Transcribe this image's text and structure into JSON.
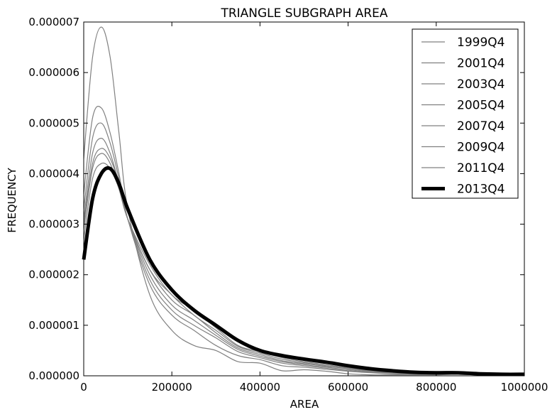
{
  "chart_data": {
    "type": "line",
    "title": "TRIANGLE SUBGRAPH AREA",
    "xlabel": "AREA",
    "ylabel": "FREQUENCY",
    "xlim": [
      0,
      1000000
    ],
    "ylim": [
      0,
      7e-06
    ],
    "xticks": [
      0,
      200000,
      400000,
      600000,
      800000,
      1000000
    ],
    "xtick_labels": [
      "0",
      "200000",
      "400000",
      "600000",
      "800000",
      "1000000"
    ],
    "yticks": [
      0,
      1e-06,
      2e-06,
      3e-06,
      4e-06,
      5e-06,
      6e-06,
      7e-06
    ],
    "ytick_labels": [
      "0.000000",
      "0.000001",
      "0.000002",
      "0.000003",
      "0.000004",
      "0.000005",
      "0.000006",
      "0.000007"
    ],
    "legend_position": "top-right",
    "grid": false,
    "x": [
      0,
      20000,
      40000,
      60000,
      80000,
      100000,
      150000,
      200000,
      250000,
      300000,
      350000,
      400000,
      450000,
      500000,
      550000,
      600000,
      650000,
      700000,
      750000,
      800000,
      850000,
      900000,
      950000,
      1000000
    ],
    "series": [
      {
        "name": "1999Q4",
        "color": "#808080",
        "values": [
          4.3e-06,
          6.3e-06,
          6.9e-06,
          6.3e-06,
          4.8e-06,
          3.3e-06,
          1.6e-06,
          9e-07,
          6e-07,
          5e-07,
          2.8e-07,
          2.5e-07,
          1e-07,
          1.2e-07,
          9e-08,
          4e-08,
          2e-08,
          2e-08,
          2e-08,
          2e-08,
          3e-08,
          2e-08,
          2e-08,
          2e-08
        ]
      },
      {
        "name": "2001Q4",
        "color": "#808080",
        "values": [
          3.6e-06,
          5.1e-06,
          5.3e-06,
          4.8e-06,
          4e-06,
          3.1e-06,
          1.8e-06,
          1.2e-06,
          9e-07,
          6e-07,
          4e-07,
          3.2e-07,
          2e-07,
          1.7e-07,
          1.3e-07,
          9e-08,
          6e-08,
          4e-08,
          3e-08,
          3e-08,
          3e-08,
          2e-08,
          2e-08,
          2e-08
        ]
      },
      {
        "name": "2003Q4",
        "color": "#808080",
        "values": [
          3.3e-06,
          4.7e-06,
          5e-06,
          4.6e-06,
          3.9e-06,
          3.1e-06,
          1.9e-06,
          1.3e-06,
          1e-06,
          7.5e-07,
          4.8e-07,
          3.6e-07,
          2.5e-07,
          2e-07,
          1.5e-07,
          1e-07,
          7e-08,
          5e-08,
          4e-08,
          3e-08,
          3e-08,
          2e-08,
          2e-08,
          2e-08
        ]
      },
      {
        "name": "2005Q4",
        "color": "#808080",
        "values": [
          3.1e-06,
          4.4e-06,
          4.7e-06,
          4.4e-06,
          3.8e-06,
          3.1e-06,
          2e-06,
          1.4e-06,
          1.1e-06,
          8e-07,
          5.2e-07,
          3.9e-07,
          2.8e-07,
          2.2e-07,
          1.7e-07,
          1.2e-07,
          8e-08,
          6e-08,
          4e-08,
          3e-08,
          3e-08,
          2e-08,
          2e-08,
          2e-08
        ]
      },
      {
        "name": "2007Q4",
        "color": "#808080",
        "values": [
          3e-06,
          4.2e-06,
          4.5e-06,
          4.3e-06,
          3.8e-06,
          3.1e-06,
          2.1e-06,
          1.5e-06,
          1.2e-06,
          8.5e-07,
          5.5e-07,
          4.2e-07,
          3e-07,
          2.4e-07,
          1.9e-07,
          1.4e-07,
          9e-08,
          7e-08,
          5e-08,
          4e-08,
          3e-08,
          2e-08,
          2e-08,
          2e-08
        ]
      },
      {
        "name": "2009Q4",
        "color": "#808080",
        "values": [
          2.9e-06,
          4.1e-06,
          4.4e-06,
          4.2e-06,
          3.7e-06,
          3.1e-06,
          2.1e-06,
          1.6e-06,
          1.2e-06,
          9e-07,
          5.8e-07,
          4.5e-07,
          3.3e-07,
          2.6e-07,
          2e-07,
          1.5e-07,
          1e-07,
          7e-08,
          5e-08,
          4e-08,
          4e-08,
          3e-08,
          2e-08,
          2e-08
        ]
      },
      {
        "name": "2011Q4",
        "color": "#808080",
        "values": [
          2.7e-06,
          3.9e-06,
          4.2e-06,
          4.1e-06,
          3.7e-06,
          3.1e-06,
          2.2e-06,
          1.6e-06,
          1.3e-06,
          9.5e-07,
          6e-07,
          4.8e-07,
          3.6e-07,
          2.8e-07,
          2.2e-07,
          1.6e-07,
          1.1e-07,
          8e-08,
          6e-08,
          5e-08,
          4e-08,
          3e-08,
          2e-08,
          2e-08
        ]
      },
      {
        "name": "2013Q4",
        "color": "#000000",
        "bold": true,
        "values": [
          2.3e-06,
          3.5e-06,
          4e-06,
          4.1e-06,
          3.8e-06,
          3.3e-06,
          2.3e-06,
          1.7e-06,
          1.3e-06,
          1e-06,
          7e-07,
          5e-07,
          4e-07,
          3.3e-07,
          2.7e-07,
          2e-07,
          1.4e-07,
          1e-07,
          7e-08,
          6e-08,
          6e-08,
          4e-08,
          3e-08,
          3e-08
        ]
      }
    ]
  }
}
